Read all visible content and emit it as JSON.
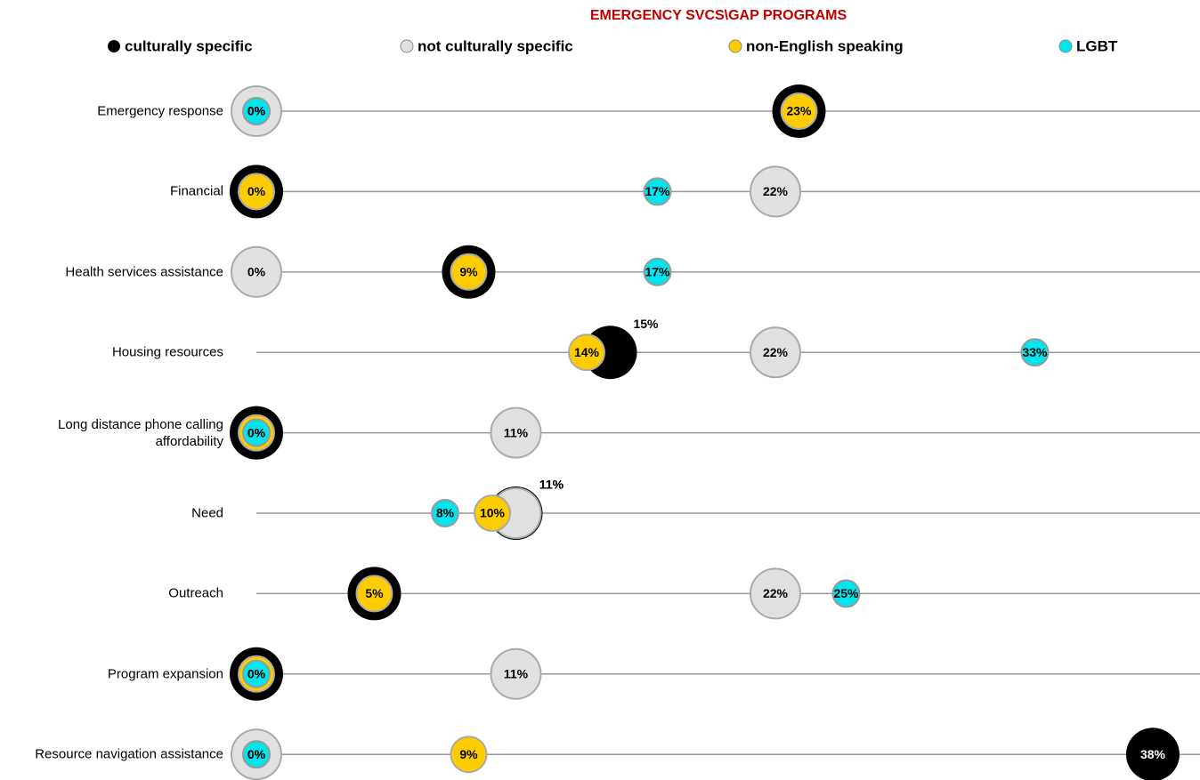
{
  "chart_data": {
    "type": "dot",
    "title": "EMERGENCY SVCS\\GAP PROGRAMS",
    "categories": [
      "Emergency response",
      "Financial",
      "Health services assistance",
      "Housing resources",
      "Long distance phone calling affordability",
      "Need",
      "Outreach",
      "Program expansion",
      "Resource navigation assistance"
    ],
    "xlim": [
      0,
      40
    ],
    "series": [
      {
        "name": "culturally specific",
        "color": "#000000",
        "values": [
          23,
          0,
          9,
          15,
          0,
          11,
          5,
          0,
          38
        ],
        "value_labels": [
          "23%",
          "0%",
          "9%",
          "15%",
          "0%",
          "11%",
          "5%",
          "0%",
          "38%"
        ]
      },
      {
        "name": "not culturally specific",
        "color": "#e0e0e0",
        "values": [
          0,
          22,
          0,
          22,
          11,
          11,
          22,
          11,
          0
        ],
        "value_labels": [
          "0%",
          "22%",
          "0%",
          "22%",
          "11%",
          "11%",
          "22%",
          "11%",
          "0%"
        ]
      },
      {
        "name": "non-English speaking",
        "color": "#ffcc00",
        "values": [
          23,
          0,
          9,
          14,
          0,
          10,
          5,
          0,
          9
        ],
        "value_labels": [
          "23%",
          "0%",
          "9%",
          "14%",
          "0%",
          "10%",
          "5%",
          "0%",
          "9%"
        ]
      },
      {
        "name": "LGBT",
        "color": "#00e5ee",
        "values": [
          0,
          17,
          17,
          33,
          0,
          8,
          25,
          0,
          0
        ],
        "value_labels": [
          "0%",
          "17%",
          "17%",
          "33%",
          "0%",
          "8%",
          "25%",
          "0%",
          "0%"
        ]
      }
    ]
  }
}
